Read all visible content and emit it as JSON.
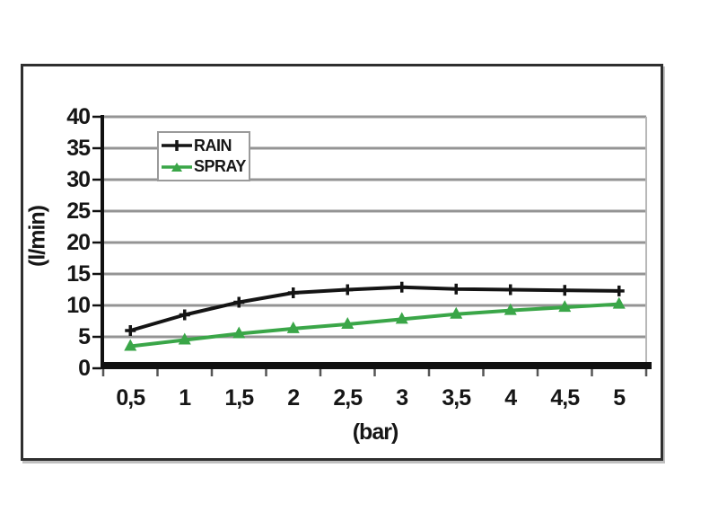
{
  "frame": {
    "border_color": "#2f2f2f",
    "background": "#ffffff"
  },
  "chart_data": {
    "type": "line",
    "x": [
      0.5,
      1,
      1.5,
      2,
      2.5,
      3,
      3.5,
      4,
      4.5,
      5
    ],
    "x_tick_labels": [
      "0,5",
      "1",
      "1,5",
      "2",
      "2,5",
      "3",
      "3,5",
      "4",
      "4,5",
      "5"
    ],
    "xlabel": "(bar)",
    "ylabel": "(l/min)",
    "ylim": [
      0,
      40
    ],
    "y_ticks": [
      0,
      5,
      10,
      15,
      20,
      25,
      30,
      35,
      40
    ],
    "grid": true,
    "legend_position": "top-left-inside",
    "series": [
      {
        "name": "RAIN",
        "color": "#141414",
        "marker": "plus",
        "values": [
          6.0,
          8.5,
          10.5,
          12.0,
          12.5,
          12.9,
          12.6,
          12.5,
          12.4,
          12.3
        ]
      },
      {
        "name": "SPRAY",
        "color": "#3aa648",
        "marker": "triangle",
        "values": [
          3.5,
          4.5,
          5.5,
          6.3,
          7.0,
          7.8,
          8.6,
          9.2,
          9.7,
          10.2
        ]
      }
    ],
    "colors": {
      "grid": "#949494",
      "axis": "#111111",
      "text": "#161616",
      "plot_right_edge": "#b8b8b8",
      "legend_border": "#9a9a9a"
    }
  }
}
